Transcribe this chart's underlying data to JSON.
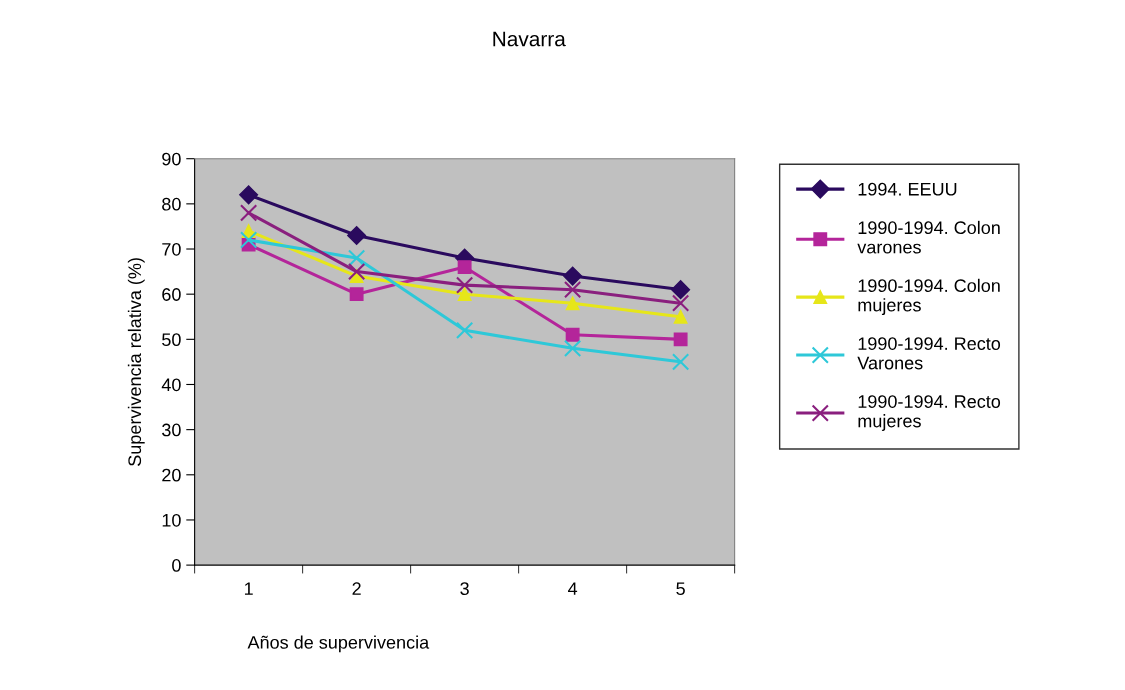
{
  "chart_data": {
    "type": "line",
    "title": "Navarra",
    "xlabel": "Años de supervivencia",
    "ylabel": "Supervivencia relativa (%)",
    "categories": [
      "1",
      "2",
      "3",
      "4",
      "5"
    ],
    "series": [
      {
        "name": "1994. EEUU",
        "color": "#2a0a5e",
        "marker": "diamond",
        "values": [
          82,
          73,
          68,
          64,
          61
        ]
      },
      {
        "name": "1990-1994. Colon varones",
        "color": "#b4259a",
        "marker": "square",
        "values": [
          71,
          60,
          66,
          51,
          50
        ]
      },
      {
        "name": "1990-1994. Colon mujeres",
        "color": "#e6e619",
        "marker": "triangle",
        "values": [
          74,
          64,
          60,
          58,
          55
        ]
      },
      {
        "name": "1990-1994. Recto Varones",
        "color": "#2ec8d8",
        "marker": "cross",
        "values": [
          72,
          68,
          52,
          48,
          45
        ]
      },
      {
        "name": "1990-1994. Recto mujeres",
        "color": "#8a1f7e",
        "marker": "cross",
        "values": [
          78,
          65,
          62,
          61,
          58
        ]
      }
    ],
    "ylim": [
      0,
      90
    ],
    "yticks": [
      0,
      10,
      20,
      30,
      40,
      50,
      60,
      70,
      80,
      90
    ],
    "grid": false,
    "legend": "right",
    "line_style": "solid"
  }
}
